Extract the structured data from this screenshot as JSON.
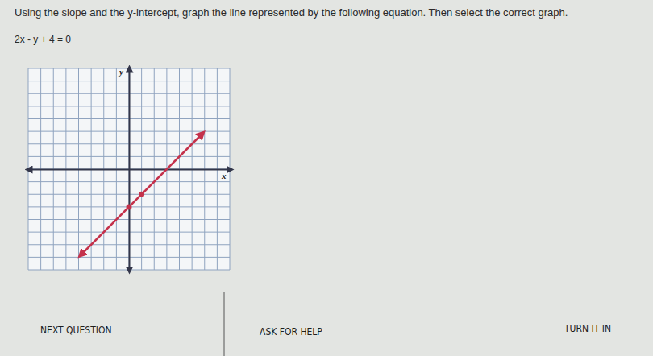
{
  "page": {
    "instruction": "Using the slope and the y-intercept, graph the line represented by the following equation. Then select the correct graph.",
    "equation": "2x - y + 4 = 0",
    "buttons": [
      "NEXT QUESTION",
      "ASK FOR HELP",
      "TURN IT IN"
    ]
  },
  "chart_data": {
    "type": "line",
    "x_label": "x",
    "y_label": "y",
    "xlim": [
      -8,
      8
    ],
    "ylim": [
      -8,
      8
    ],
    "xticks": [
      -8,
      -7,
      -6,
      -5,
      -4,
      -3,
      -2,
      -1,
      0,
      1,
      2,
      3,
      4,
      5,
      6,
      7,
      8
    ],
    "yticks": [
      -8,
      -7,
      -6,
      -5,
      -4,
      -3,
      -2,
      -1,
      0,
      1,
      2,
      3,
      4,
      5,
      6,
      7,
      8
    ],
    "grid": true,
    "tick_labels": false,
    "series": [
      {
        "type": "line",
        "color": "#c4314b",
        "line_style": "solid",
        "x": [
          -3.8,
          5.8
        ],
        "values": [
          -6.8,
          2.8
        ]
      },
      {
        "type": "scatter",
        "color": "#c4314b",
        "marker": "circle",
        "x": [
          0,
          1
        ],
        "values": [
          -3,
          -2
        ]
      }
    ]
  }
}
